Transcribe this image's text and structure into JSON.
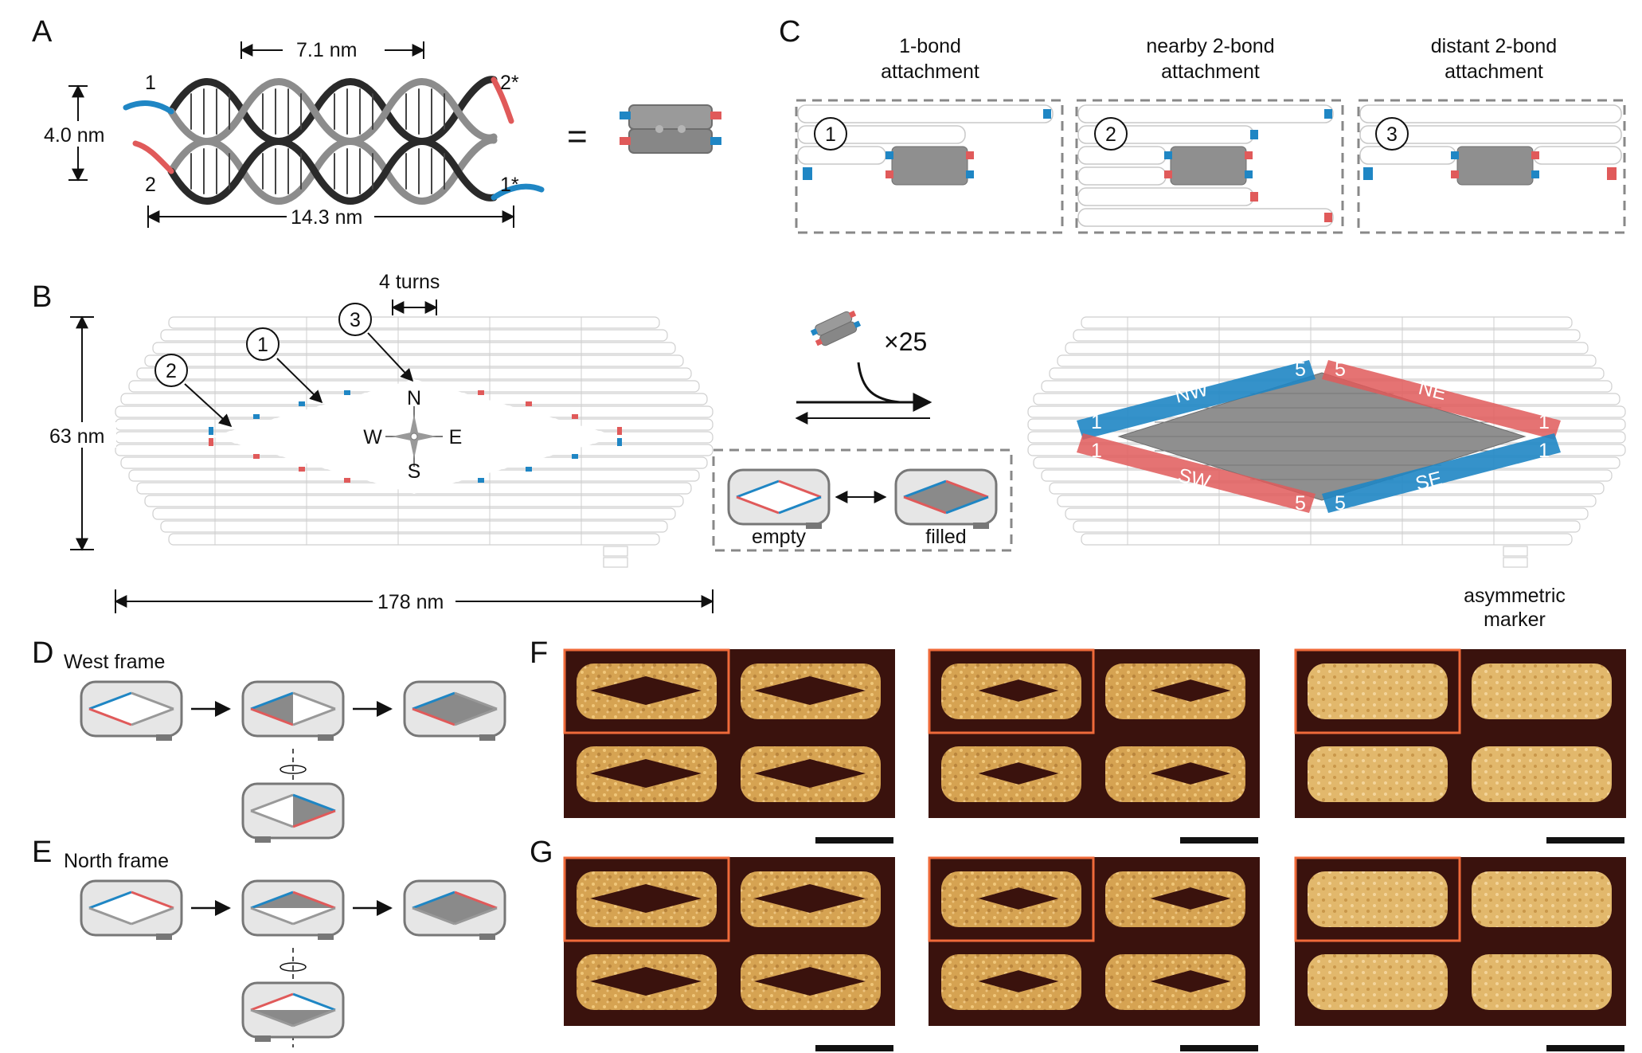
{
  "panels": {
    "A": "A",
    "B": "B",
    "C": "C",
    "D": "D",
    "E": "E",
    "F": "F",
    "G": "G"
  },
  "panel_a": {
    "width_label": "7.1 nm",
    "height_label": "4.0 nm",
    "length_label": "14.3 nm",
    "end_1": "1",
    "end_2": "2",
    "end_1s": "1*",
    "end_2s": "2*",
    "equals": "="
  },
  "panel_c": {
    "titles": [
      [
        "1-bond",
        "attachment"
      ],
      [
        "nearby 2-bond",
        "attachment"
      ],
      [
        "distant 2-bond",
        "attachment"
      ]
    ],
    "markers": [
      "1",
      "2",
      "3"
    ]
  },
  "panel_b": {
    "turns_label": "4 turns",
    "height_label": "63 nm",
    "width_label": "178 nm",
    "compass": {
      "n": "N",
      "s": "S",
      "e": "E",
      "w": "W"
    },
    "site_markers": [
      "1",
      "2",
      "3"
    ],
    "multiplier": "×25",
    "state_empty": "empty",
    "state_filled": "filled",
    "edges": {
      "nw": "NW",
      "ne": "NE",
      "sw": "SW",
      "se": "SE"
    },
    "edge_counts": {
      "one": "1",
      "five": "5"
    },
    "marker_label": [
      "asymmetric",
      "marker"
    ]
  },
  "panel_d": {
    "title": "West frame"
  },
  "panel_e": {
    "title": "North frame"
  },
  "colors": {
    "red": "#e05a5a",
    "blue": "#1f86c4",
    "gray": "#8a8a8a",
    "afm_bg": "#3a120d",
    "afm_fg": "#d9a95b",
    "highlight": "#ef6a3a"
  }
}
